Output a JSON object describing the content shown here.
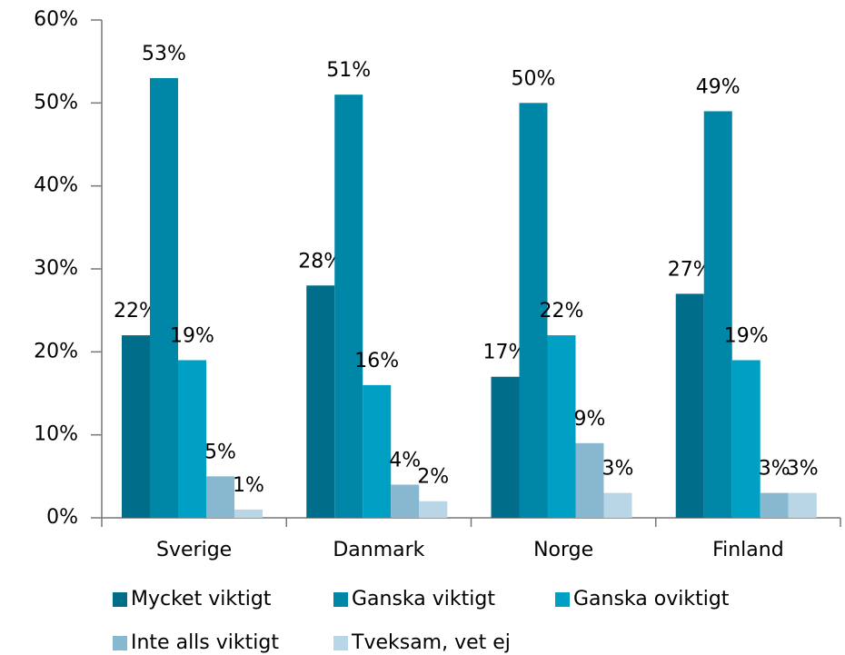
{
  "chart_data": {
    "type": "bar",
    "categories": [
      "Sverige",
      "Danmark",
      "Norge",
      "Finland"
    ],
    "series": [
      {
        "name": "Mycket viktigt",
        "color": "#006e8b",
        "values": [
          22,
          28,
          17,
          27
        ],
        "value_labels": [
          "22%",
          "28%",
          "17%",
          "27%"
        ]
      },
      {
        "name": "Ganska viktigt",
        "color": "#0086a6",
        "values": [
          53,
          51,
          50,
          49
        ],
        "value_labels": [
          "53%",
          "51%",
          "50%",
          "49%"
        ]
      },
      {
        "name": "Ganska oviktigt",
        "color": "#00a0c4",
        "values": [
          19,
          16,
          22,
          19
        ],
        "value_labels": [
          "19%",
          "16%",
          "22%",
          "19%"
        ]
      },
      {
        "name": "Inte alls viktigt",
        "color": "#88b8cf",
        "values": [
          5,
          4,
          9,
          3
        ],
        "value_labels": [
          "5%",
          "4%",
          "9%",
          "3%"
        ]
      },
      {
        "name": "Tveksam, vet ej",
        "color": "#b8d6e5",
        "values": [
          1,
          2,
          3,
          3
        ],
        "value_labels": [
          "1%",
          "2%",
          "3%",
          "3%"
        ]
      }
    ],
    "ylim": [
      0,
      60
    ],
    "yticks": [
      {
        "value": 0,
        "label": "0%"
      },
      {
        "value": 10,
        "label": "10%"
      },
      {
        "value": 20,
        "label": "20%"
      },
      {
        "value": 30,
        "label": "30%"
      },
      {
        "value": 40,
        "label": "40%"
      },
      {
        "value": 50,
        "label": "50%"
      },
      {
        "value": 60,
        "label": "60%"
      }
    ],
    "legend": "bottom"
  }
}
